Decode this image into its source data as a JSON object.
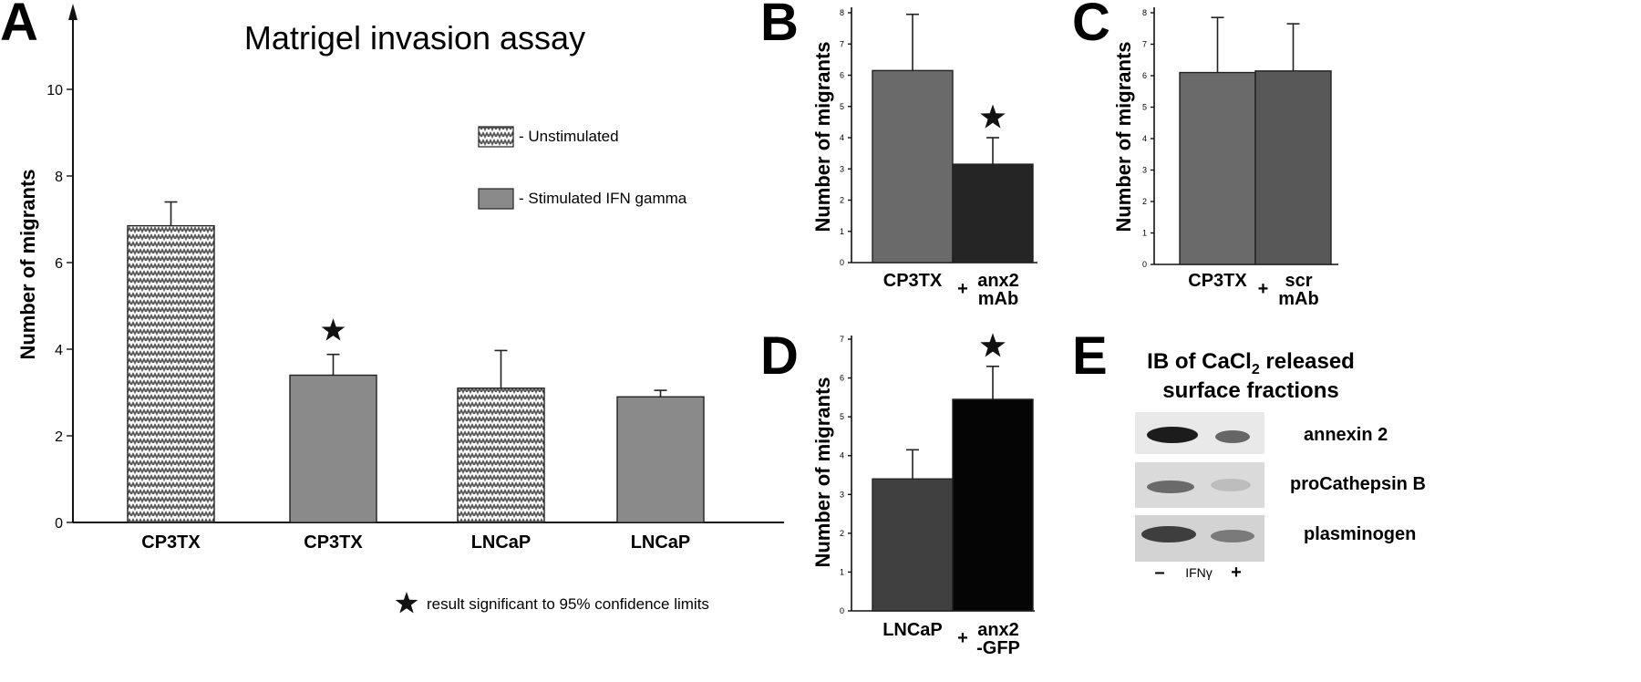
{
  "colors": {
    "unstimulated_pattern": "#6e6e6e",
    "stimulated": "#8a8a8a",
    "b_bar1": "#6a6a6a",
    "b_bar2": "#252525",
    "c_bar1": "#6a6a6a",
    "c_bar2": "#585858",
    "d_bar1": "#404040",
    "d_bar2": "#050505",
    "axis": "#111111"
  },
  "panels": {
    "A": {
      "letter": "A"
    },
    "B": {
      "letter": "B"
    },
    "C": {
      "letter": "C"
    },
    "D": {
      "letter": "D"
    },
    "E": {
      "letter": "E"
    }
  },
  "legend": {
    "unstimulated": "- Unstimulated",
    "stimulated": "- Stimulated IFN gamma",
    "significance_note": "result significant to 95% confidence limits"
  },
  "chart_data": [
    {
      "id": "A",
      "type": "bar",
      "title": "Matrigel invasion assay",
      "ylabel": "Number of migrants",
      "ylim": [
        0,
        12
      ],
      "yticks": [
        0,
        2,
        4,
        6,
        8,
        10
      ],
      "categories": [
        "CP3TX",
        "CP3TX",
        "LNCaP",
        "LNCaP"
      ],
      "values": [
        6.85,
        3.4,
        3.1,
        2.9
      ],
      "errors": [
        0.55,
        0.48,
        0.87,
        0.15
      ],
      "condition": [
        "unstimulated",
        "stimulated",
        "unstimulated",
        "stimulated"
      ],
      "significant": [
        false,
        true,
        false,
        false
      ],
      "legend": "top-right",
      "grid": false
    },
    {
      "id": "B",
      "type": "bar",
      "ylabel": "Number of migrants",
      "ylim": [
        0,
        8
      ],
      "yticks": [
        0,
        1,
        2,
        3,
        4,
        5,
        6,
        7,
        8
      ],
      "categories": [
        {
          "prefix": "",
          "lines": [
            "CP3TX"
          ]
        },
        {
          "prefix": "+",
          "lines": [
            "anx2",
            "mAb"
          ]
        }
      ],
      "values": [
        6.15,
        3.15
      ],
      "errors": [
        1.8,
        0.85
      ],
      "significant": [
        false,
        true
      ],
      "grid": false
    },
    {
      "id": "C",
      "type": "bar",
      "ylabel": "Number of migrants",
      "ylim": [
        0,
        8
      ],
      "yticks": [
        0,
        1,
        2,
        3,
        4,
        5,
        6,
        7,
        8
      ],
      "categories": [
        {
          "prefix": "",
          "lines": [
            "CP3TX"
          ]
        },
        {
          "prefix": "+",
          "lines": [
            "scr",
            "mAb"
          ]
        }
      ],
      "values": [
        6.1,
        6.15
      ],
      "errors": [
        1.75,
        1.5
      ],
      "significant": [
        false,
        false
      ],
      "grid": false
    },
    {
      "id": "D",
      "type": "bar",
      "ylabel": "Number of migrants",
      "ylim": [
        0,
        7
      ],
      "yticks": [
        0,
        1,
        2,
        3,
        4,
        5,
        6,
        7
      ],
      "categories": [
        {
          "prefix": "",
          "lines": [
            "LNCaP"
          ]
        },
        {
          "prefix": "+",
          "lines": [
            "anx2",
            "-GFP"
          ]
        }
      ],
      "values": [
        3.4,
        5.45
      ],
      "errors": [
        0.75,
        0.85
      ],
      "significant": [
        false,
        true
      ],
      "grid": false
    }
  ],
  "blot": {
    "title_line1_prefix": "IB of CaCl",
    "title_line1_subscript": "2",
    "title_line1_suffix": " released",
    "title_line2": "surface fractions",
    "rows": [
      "annexin 2",
      "proCathepsin B",
      "plasminogen"
    ],
    "lane_minus": "–",
    "lane_label": "IFNγ",
    "lane_plus": "+"
  }
}
